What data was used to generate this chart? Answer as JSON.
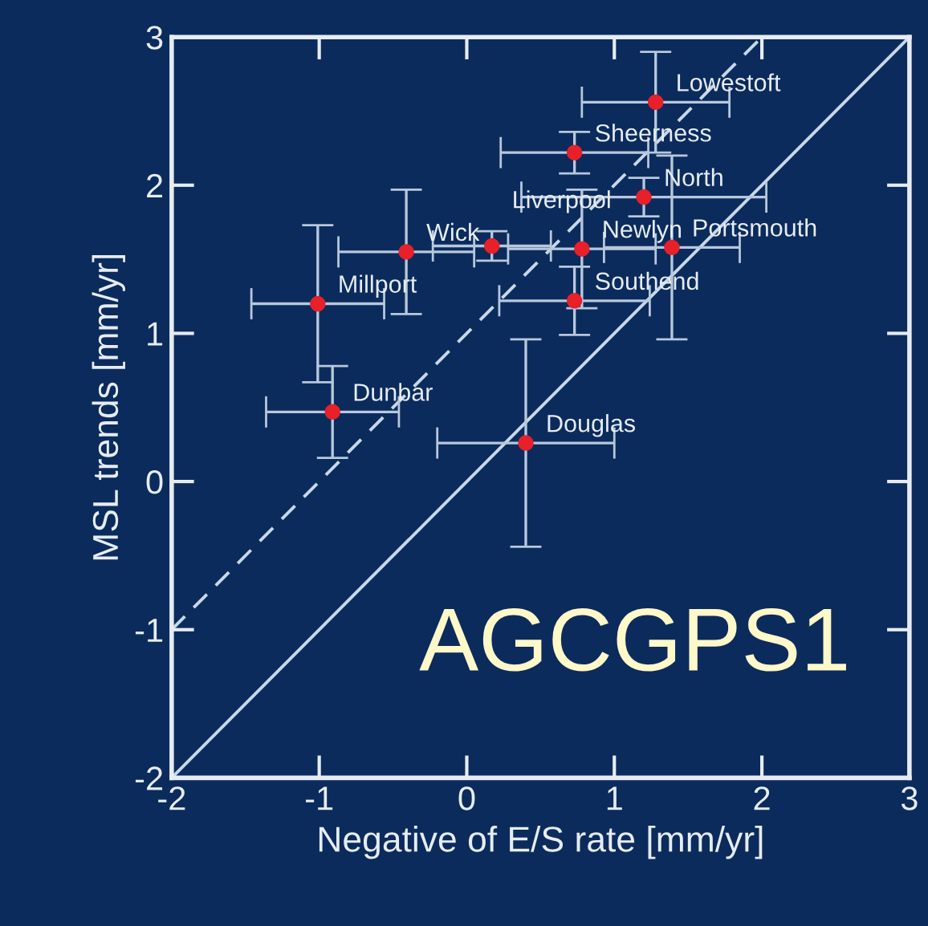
{
  "chart_data": {
    "type": "scatter",
    "xlabel": "Negative of E/S rate [mm/yr]",
    "ylabel": "MSL trends [mm/yr]",
    "xlim": [
      -2,
      3
    ],
    "ylim": [
      -2,
      3
    ],
    "xticks": [
      -2,
      -1,
      0,
      1,
      2,
      3
    ],
    "yticks": [
      -2,
      -1,
      0,
      1,
      2,
      3
    ],
    "grid": false,
    "series": [
      {
        "color": "#e8202a",
        "marker": "circle",
        "x": [
          1.28,
          0.73,
          1.2,
          -0.41,
          0.17,
          0.78,
          1.39,
          -1.01,
          0.73,
          -0.91,
          0.4
        ],
        "values": [
          2.56,
          2.22,
          1.92,
          1.55,
          1.59,
          1.57,
          1.58,
          1.2,
          1.22,
          0.47,
          0.26
        ],
        "xerrors": [
          0.5,
          0.5,
          0.83,
          0.46,
          0.4,
          0.5,
          0.46,
          0.45,
          0.51,
          0.45,
          0.6
        ],
        "errors": [
          0.34,
          0.14,
          0.13,
          0.42,
          0.1,
          0.4,
          0.62,
          0.53,
          0.23,
          0.31,
          0.7
        ]
      },
      {
        "type": "line",
        "color": "#c8d8e8",
        "line_style": "solid",
        "x": [
          -2,
          3
        ],
        "values": [
          -2,
          3
        ]
      },
      {
        "type": "line",
        "color": "#c8d8e8",
        "line_style": "dashed",
        "x": [
          -2,
          2
        ],
        "values": [
          -1,
          3
        ]
      }
    ],
    "annotations": [
      {
        "text": "Lowestoft",
        "x": 1.28,
        "y": 2.56
      },
      {
        "text": "Sheerness",
        "x": 0.73,
        "y": 2.22
      },
      {
        "text": "North",
        "x": 1.2,
        "y": 1.92
      },
      {
        "text": "Newlyn",
        "x": 0.78,
        "y": 1.57
      },
      {
        "text": "Wick",
        "x": -0.41,
        "y": 1.55
      },
      {
        "text": "Liverpool",
        "x": 0.17,
        "y": 1.59
      },
      {
        "text": "Portsmouth",
        "x": 1.39,
        "y": 1.58
      },
      {
        "text": "Millport",
        "x": -1.01,
        "y": 1.2
      },
      {
        "text": "Southend",
        "x": 0.73,
        "y": 1.22
      },
      {
        "text": "Dunbar",
        "x": -0.91,
        "y": 0.47
      },
      {
        "text": "Douglas",
        "x": 0.4,
        "y": 0.26
      },
      "AGCGPS1"
    ]
  }
}
